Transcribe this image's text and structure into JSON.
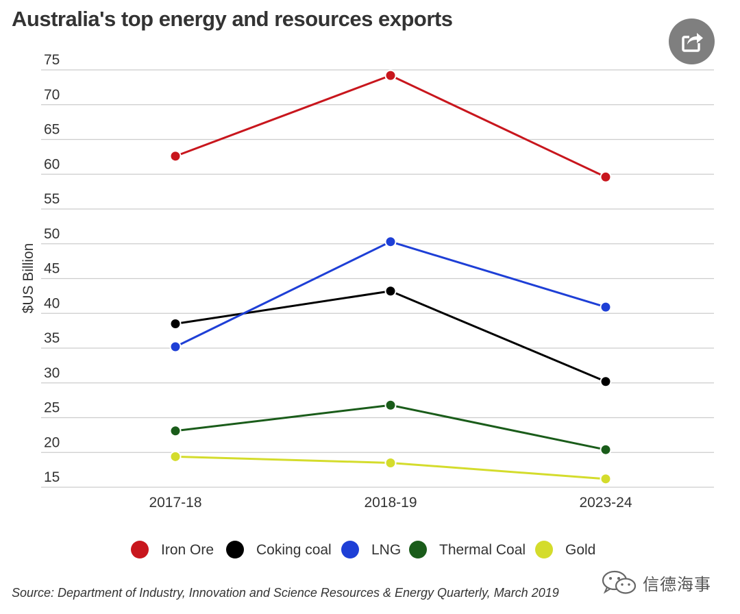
{
  "header": {
    "title": "Australia's top energy and resources exports"
  },
  "toolbar": {
    "share_icon": "share-icon"
  },
  "footer": {
    "source": "Source: Department of Industry, Innovation and Science Resources & Energy Quarterly, March 2019",
    "watermark": "信德海事",
    "watermark_icon": "wechat-icon"
  },
  "colors": {
    "gridline": "#cccccc",
    "axis_text": "#333333",
    "share_button": "#7f7f7f"
  },
  "chart_data": {
    "type": "line",
    "title": "Australia's top energy and resources exports",
    "xlabel": "",
    "ylabel": "$US Billion",
    "categories": [
      "2017-18",
      "2018-19",
      "2023-24"
    ],
    "ylim": [
      15,
      75
    ],
    "yticks": [
      15,
      20,
      25,
      30,
      35,
      40,
      45,
      50,
      55,
      60,
      65,
      70,
      75
    ],
    "grid": true,
    "legend_position": "bottom",
    "series": [
      {
        "name": "Iron Ore",
        "color": "#c8161d",
        "values": [
          62.6,
          74.2,
          59.6
        ]
      },
      {
        "name": "Coking coal",
        "color": "#000000",
        "values": [
          38.5,
          43.2,
          30.2
        ]
      },
      {
        "name": "LNG",
        "color": "#1e3fd6",
        "values": [
          35.2,
          50.3,
          40.9
        ]
      },
      {
        "name": "Thermal Coal",
        "color": "#1a5c1a",
        "values": [
          23.1,
          26.8,
          20.4
        ]
      },
      {
        "name": "Gold",
        "color": "#d4dc2c",
        "values": [
          19.4,
          18.5,
          16.2
        ]
      }
    ]
  }
}
